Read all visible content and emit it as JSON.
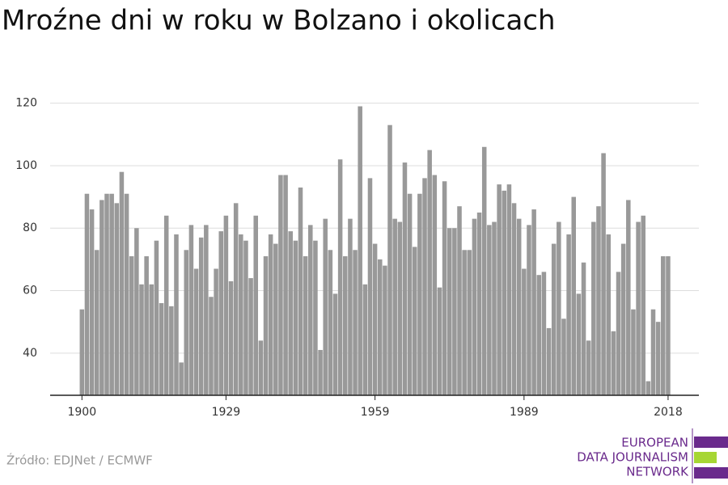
{
  "chart_data": {
    "type": "bar",
    "title": "Mroźne dni w roku w Bolzano i okolicach",
    "x": [
      1900,
      1901,
      1902,
      1903,
      1904,
      1905,
      1906,
      1907,
      1908,
      1909,
      1910,
      1911,
      1912,
      1913,
      1914,
      1915,
      1916,
      1917,
      1918,
      1919,
      1920,
      1921,
      1922,
      1923,
      1924,
      1925,
      1926,
      1927,
      1928,
      1929,
      1930,
      1931,
      1932,
      1933,
      1934,
      1935,
      1936,
      1937,
      1938,
      1939,
      1940,
      1941,
      1942,
      1943,
      1944,
      1945,
      1946,
      1947,
      1948,
      1949,
      1950,
      1951,
      1952,
      1953,
      1954,
      1955,
      1956,
      1957,
      1958,
      1959,
      1960,
      1961,
      1962,
      1963,
      1964,
      1965,
      1966,
      1967,
      1968,
      1969,
      1970,
      1971,
      1972,
      1973,
      1974,
      1975,
      1976,
      1977,
      1978,
      1979,
      1980,
      1981,
      1982,
      1983,
      1984,
      1985,
      1986,
      1987,
      1988,
      1989,
      1990,
      1991,
      1992,
      1993,
      1994,
      1995,
      1996,
      1997,
      1998,
      1999,
      2000,
      2001,
      2002,
      2003,
      2004,
      2005,
      2006,
      2007,
      2008,
      2009,
      2010,
      2011,
      2012,
      2013,
      2014,
      2015,
      2016,
      2017,
      2018
    ],
    "values": [
      54,
      91,
      86,
      73,
      89,
      91,
      91,
      88,
      98,
      91,
      71,
      80,
      62,
      71,
      62,
      76,
      56,
      84,
      55,
      78,
      37,
      73,
      81,
      67,
      77,
      81,
      58,
      67,
      79,
      84,
      63,
      88,
      78,
      76,
      64,
      84,
      44,
      71,
      78,
      75,
      97,
      97,
      79,
      76,
      93,
      71,
      81,
      76,
      41,
      83,
      73,
      59,
      102,
      71,
      83,
      73,
      119,
      62,
      96,
      75,
      70,
      68,
      113,
      83,
      82,
      101,
      91,
      74,
      91,
      96,
      105,
      97,
      61,
      95,
      80,
      80,
      87,
      73,
      73,
      83,
      85,
      106,
      81,
      82,
      94,
      92,
      94,
      88,
      83,
      67,
      81,
      86,
      65,
      66,
      48,
      75,
      82,
      51,
      78,
      90,
      59,
      69,
      44,
      82,
      87,
      104,
      78,
      47,
      66,
      75,
      89,
      54,
      82,
      84,
      31,
      54,
      50,
      71,
      71
    ],
    "color": "#999999",
    "xlim": [
      1893.6,
      2024.2
    ],
    "xticks": [
      1900,
      1929,
      1959,
      1989,
      2018
    ],
    "ylim": [
      26.5,
      130
    ],
    "yticks": [
      40,
      60,
      80,
      100,
      120
    ],
    "grid": true
  },
  "footer": {
    "source": "Źródło: EDJNet / ECMWF",
    "logo": [
      "EUROPEAN",
      "DATA JOURNALISM",
      "NETWORK"
    ]
  }
}
